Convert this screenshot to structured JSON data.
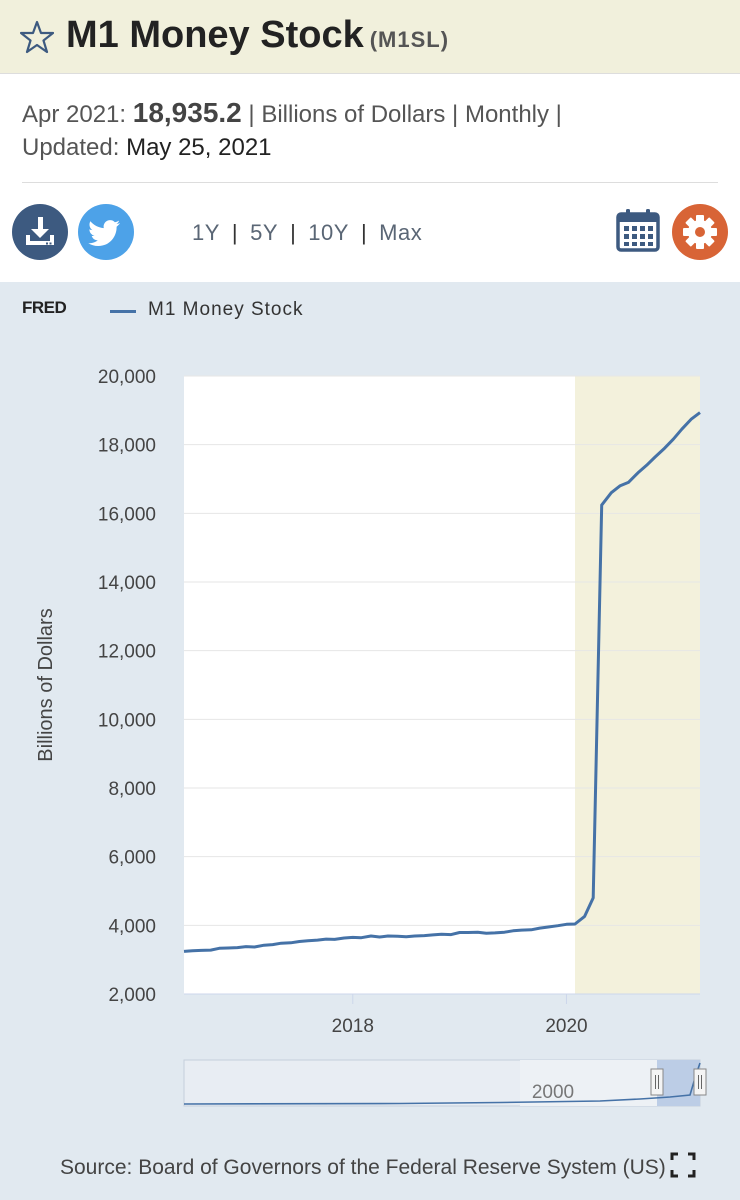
{
  "header": {
    "title": "M1 Money Stock",
    "code": "(M1SL)"
  },
  "meta": {
    "period": "Apr 2021:",
    "value": "18,935.2",
    "units": "| Billions of Dollars | Monthly |",
    "updated_label": "Updated:",
    "updated_value": "May 25, 2021"
  },
  "toolbar": {
    "ranges": [
      "1Y",
      "5Y",
      "10Y",
      "Max"
    ],
    "separator": "|"
  },
  "chart_header": {
    "logo": "FRED",
    "legend_label": "M1 Money Stock"
  },
  "source": "Source: Board of Governors of the Federal Reserve System (US)",
  "colors": {
    "series": "#4572a7",
    "recession": "#f3f1dc",
    "panel": "#e1e9f0"
  },
  "chart_data": {
    "type": "line",
    "title": "",
    "xlabel": "",
    "ylabel": "Billions of Dollars",
    "ylim": [
      2000,
      20000
    ],
    "xlim": [
      2016.42,
      2021.25
    ],
    "yticks": [
      2000,
      4000,
      6000,
      8000,
      10000,
      12000,
      14000,
      16000,
      18000,
      20000
    ],
    "ytick_labels": [
      "2,000",
      "4,000",
      "6,000",
      "8,000",
      "10,000",
      "12,000",
      "14,000",
      "16,000",
      "18,000",
      "20,000"
    ],
    "xticks": [
      2018,
      2020
    ],
    "xtick_labels": [
      "2018",
      "2020"
    ],
    "recession": {
      "start": 2020.08,
      "end": 2021.25
    },
    "navigator_label": "2000",
    "series": [
      {
        "name": "M1 Money Stock",
        "x": [
          2016.42,
          2016.5,
          2016.58,
          2016.67,
          2016.75,
          2016.83,
          2016.92,
          2017.0,
          2017.08,
          2017.17,
          2017.25,
          2017.33,
          2017.42,
          2017.5,
          2017.58,
          2017.67,
          2017.75,
          2017.83,
          2017.92,
          2018.0,
          2018.08,
          2018.17,
          2018.25,
          2018.33,
          2018.42,
          2018.5,
          2018.58,
          2018.67,
          2018.75,
          2018.83,
          2018.92,
          2019.0,
          2019.08,
          2019.17,
          2019.25,
          2019.33,
          2019.42,
          2019.5,
          2019.58,
          2019.67,
          2019.75,
          2019.83,
          2019.92,
          2020.0,
          2020.08,
          2020.17,
          2020.25,
          2020.33,
          2020.42,
          2020.5,
          2020.58,
          2020.67,
          2020.75,
          2020.83,
          2020.92,
          2021.0,
          2021.08,
          2021.17,
          2021.25
        ],
        "y": [
          3240,
          3260,
          3270,
          3280,
          3330,
          3340,
          3350,
          3380,
          3370,
          3420,
          3440,
          3480,
          3490,
          3530,
          3550,
          3570,
          3600,
          3590,
          3630,
          3650,
          3640,
          3690,
          3660,
          3690,
          3680,
          3670,
          3690,
          3700,
          3720,
          3740,
          3730,
          3790,
          3790,
          3800,
          3770,
          3780,
          3800,
          3840,
          3860,
          3870,
          3920,
          3950,
          3990,
          4030,
          4040,
          4260,
          4800,
          16240,
          16600,
          16800,
          16900,
          17180,
          17400,
          17640,
          17900,
          18160,
          18450,
          18750,
          18935
        ]
      }
    ]
  }
}
